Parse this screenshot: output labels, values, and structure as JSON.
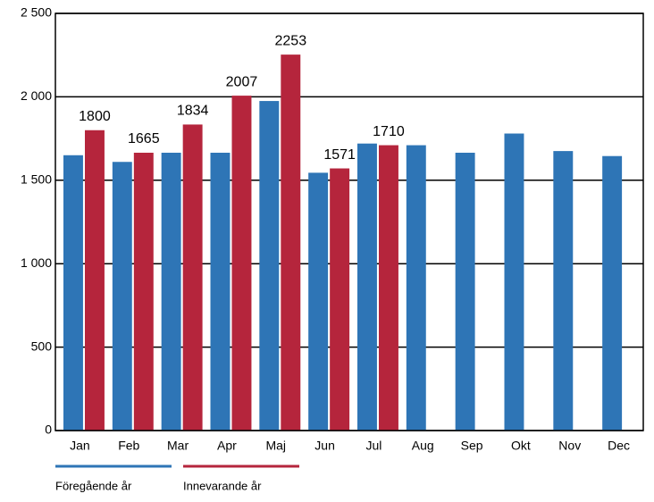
{
  "chart_data": {
    "type": "bar",
    "categories": [
      "Jan",
      "Feb",
      "Mar",
      "Apr",
      "Maj",
      "Jun",
      "Jul",
      "Aug",
      "Sep",
      "Okt",
      "Nov",
      "Dec"
    ],
    "series": [
      {
        "name": "Föregående år",
        "color": "#2e75b6",
        "values": [
          1650,
          1610,
          1665,
          1665,
          1975,
          1545,
          1720,
          1710,
          1665,
          1780,
          1675,
          1645
        ]
      },
      {
        "name": "Innevarande år",
        "color": "#b5253c",
        "values": [
          1800,
          1665,
          1834,
          2007,
          2253,
          1571,
          1710,
          null,
          null,
          null,
          null,
          null
        ]
      }
    ],
    "ylim": [
      0,
      2500
    ],
    "yticks": [
      0,
      500,
      {
        "value": 1000,
        "label": "1 000"
      },
      {
        "value": 1500,
        "label": "1 500"
      },
      {
        "value": 2000,
        "label": "2 000"
      },
      {
        "value": 2500,
        "label": "2 500"
      }
    ],
    "grid": true,
    "legend": "bottom"
  }
}
